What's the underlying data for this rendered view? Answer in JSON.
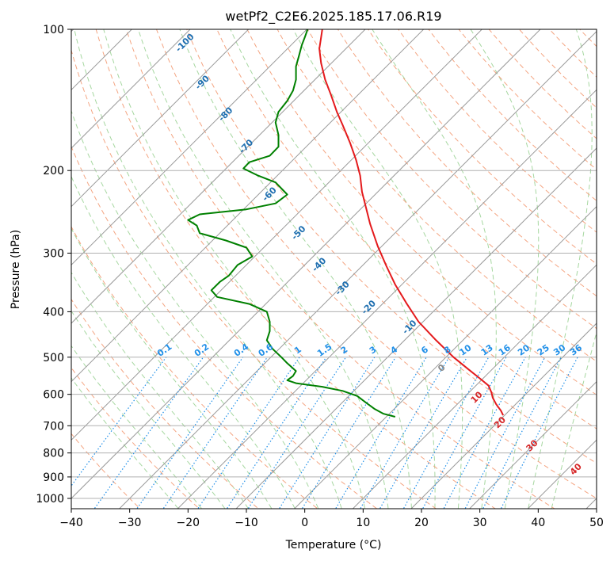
{
  "chart_data": {
    "type": "line",
    "title": "wetPf2_C2E6.2025.185.17.06.R19",
    "xlabel": "Temperature (°C)",
    "ylabel": "Pressure (hPa)",
    "xlim": [
      -40,
      50
    ],
    "ylim": [
      1050,
      100
    ],
    "y_scale": "log",
    "grid": true,
    "x_ticks": [
      -40,
      -30,
      -20,
      -10,
      0,
      10,
      20,
      30,
      40,
      50
    ],
    "x_tick_labels": [
      "−40",
      "−30",
      "−20",
      "−10",
      "0",
      "10",
      "20",
      "30",
      "40",
      "50"
    ],
    "y_ticks": [
      1000,
      900,
      800,
      700,
      600,
      500,
      400,
      300,
      200,
      100
    ],
    "y_tick_labels": [
      "1000",
      "900",
      "800",
      "700",
      "600",
      "500",
      "400",
      "300",
      "200",
      "100"
    ],
    "series": [
      {
        "color": "#e41a1c",
        "points": [
          [
            34.0,
            665
          ],
          [
            33.6,
            650
          ],
          [
            32.8,
            630
          ],
          [
            32.2,
            610
          ],
          [
            32.0,
            595
          ],
          [
            31.5,
            575
          ],
          [
            30.0,
            555
          ],
          [
            28.0,
            530
          ],
          [
            25.5,
            500
          ],
          [
            22.5,
            460
          ],
          [
            19.5,
            420
          ],
          [
            17.5,
            385
          ],
          [
            15.5,
            350
          ],
          [
            14.0,
            320
          ],
          [
            12.5,
            290
          ],
          [
            11.2,
            260
          ],
          [
            10.5,
            240
          ],
          [
            9.8,
            222
          ],
          [
            9.5,
            205
          ],
          [
            8.8,
            190
          ],
          [
            7.8,
            175
          ],
          [
            6.5,
            160
          ],
          [
            5.5,
            150
          ],
          [
            4.5,
            138
          ],
          [
            3.5,
            128
          ],
          [
            2.8,
            118
          ],
          [
            2.5,
            110
          ],
          [
            2.8,
            104
          ],
          [
            3.0,
            100
          ]
        ]
      },
      {
        "color": "#008000",
        "points": [
          [
            15.5,
            670
          ],
          [
            13.5,
            660
          ],
          [
            12.0,
            645
          ],
          [
            10.5,
            625
          ],
          [
            9.0,
            605
          ],
          [
            6.5,
            590
          ],
          [
            3.0,
            578
          ],
          [
            -1.5,
            568
          ],
          [
            -3.0,
            560
          ],
          [
            -2.0,
            548
          ],
          [
            -1.5,
            535
          ],
          [
            -3.0,
            515
          ],
          [
            -4.0,
            500
          ],
          [
            -5.5,
            480
          ],
          [
            -6.5,
            460
          ],
          [
            -6.0,
            440
          ],
          [
            -6.0,
            420
          ],
          [
            -6.5,
            400
          ],
          [
            -9.5,
            385
          ],
          [
            -15.0,
            372
          ],
          [
            -16.0,
            360
          ],
          [
            -14.5,
            345
          ],
          [
            -13.0,
            335
          ],
          [
            -11.5,
            318
          ],
          [
            -9.0,
            305
          ],
          [
            -10.0,
            292
          ],
          [
            -13.5,
            282
          ],
          [
            -18.0,
            272
          ],
          [
            -18.5,
            262
          ],
          [
            -20.0,
            255
          ],
          [
            -18.0,
            248
          ],
          [
            -10.0,
            242
          ],
          [
            -5.0,
            235
          ],
          [
            -3.0,
            225
          ],
          [
            -5.0,
            212
          ],
          [
            -8.0,
            205
          ],
          [
            -10.5,
            198
          ],
          [
            -9.5,
            192
          ],
          [
            -6.0,
            186
          ],
          [
            -4.5,
            178
          ],
          [
            -4.5,
            168
          ],
          [
            -5.0,
            158
          ],
          [
            -4.5,
            150
          ],
          [
            -3.0,
            142
          ],
          [
            -2.0,
            135
          ],
          [
            -1.5,
            128
          ],
          [
            -1.5,
            120
          ],
          [
            -1.0,
            114
          ],
          [
            -0.5,
            108
          ],
          [
            0.0,
            104
          ],
          [
            0.5,
            100
          ]
        ]
      }
    ],
    "dry_adiabat_labels": [
      "-100",
      "-90",
      "-80",
      "-70",
      "-60",
      "-50",
      "-40",
      "-30",
      "-20",
      "-10",
      "0",
      "10",
      "20",
      "30",
      "40"
    ],
    "mixing_ratio_labels": [
      "0.1",
      "0.2",
      "0.4",
      "0.6",
      "1",
      "1.5",
      "2",
      "3",
      "4",
      "6",
      "8",
      "10",
      "13",
      "16",
      "20",
      "25",
      "30",
      "36"
    ],
    "colors": {
      "temperature": "#e41a1c",
      "dewpoint": "#008000",
      "dry_adiabat": "#f4a582",
      "moist_adiabat": "#a6d7a0",
      "mixing_ratio": "#1f8fe8",
      "isotherm": "#999999",
      "dry_adiabat_label": "#1f6fb0",
      "warm_label": "#d62728",
      "zero_label": "#888888"
    }
  }
}
